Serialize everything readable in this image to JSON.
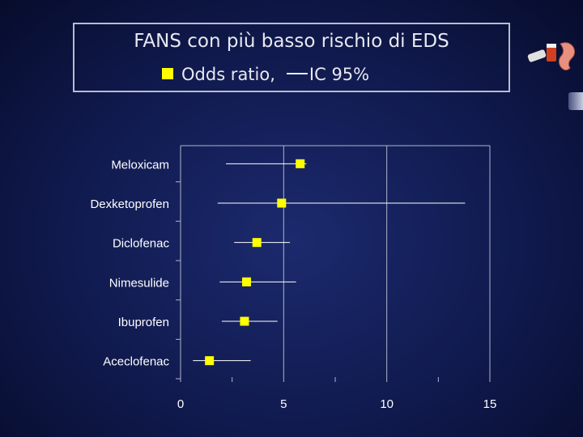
{
  "title": "FANS con più basso rischio di EDS",
  "legend": {
    "point_label": "Odds ratio,",
    "ci_label": "IC 95%"
  },
  "decoration": {
    "image_icon": "medicine-digestive-icon"
  },
  "colors": {
    "background": "#101a4e",
    "marker": "#ffff00",
    "lines": "#ffffff"
  },
  "chart_data": {
    "type": "forest",
    "title": "FANS con più basso rischio di EDS",
    "x_ticks": [
      0,
      5,
      10,
      15
    ],
    "xlim": [
      0,
      15
    ],
    "grid": "vertical at 5 and 10",
    "categories": [
      "Meloxicam",
      "Dexketoprofen",
      "Diclofenac",
      "Nimesulide",
      "Ibuprofen",
      "Aceclofenac"
    ],
    "series": [
      {
        "name": "Odds ratio",
        "values": [
          5.8,
          4.9,
          3.7,
          3.2,
          3.1,
          1.4
        ]
      },
      {
        "name": "IC 95%",
        "lower": [
          2.2,
          1.8,
          2.6,
          1.9,
          2.0,
          0.6
        ],
        "upper": [
          6.1,
          13.8,
          5.3,
          5.6,
          4.7,
          3.4
        ]
      }
    ]
  }
}
